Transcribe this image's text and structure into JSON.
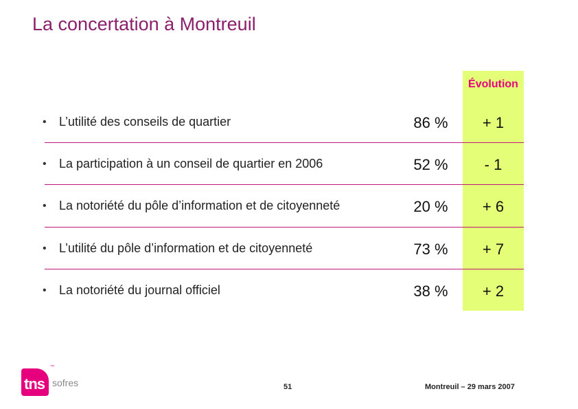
{
  "title": "La concertation à Montreuil",
  "evolution_header": "Évolution",
  "rows": [
    {
      "label": "L’utilité des conseils de quartier",
      "value": "86 %",
      "evolution": "+ 1"
    },
    {
      "label": "La participation à un conseil de quartier en 2006",
      "value": "52 %",
      "evolution": "- 1"
    },
    {
      "label": "La notoriété du pôle d’information et de citoyenneté",
      "value": "20 %",
      "evolution": "+ 6"
    },
    {
      "label": "L’utilité du pôle d’information et de citoyenneté",
      "value": "73 %",
      "evolution": "+ 7"
    },
    {
      "label": "La notoriété du journal officiel",
      "value": "38 %",
      "evolution": "+ 2"
    }
  ],
  "bullet": "•",
  "footer": {
    "page_number": "51",
    "right_text": "Montreuil – 29 mars 2007"
  },
  "logo": {
    "mark_text": "tns",
    "tm": "™",
    "brand_text": "sofres"
  },
  "colors": {
    "title": "#8b1f6c",
    "accent": "#e6007e",
    "evolution_column": "#e5fe77",
    "separator": "#c0187a"
  }
}
